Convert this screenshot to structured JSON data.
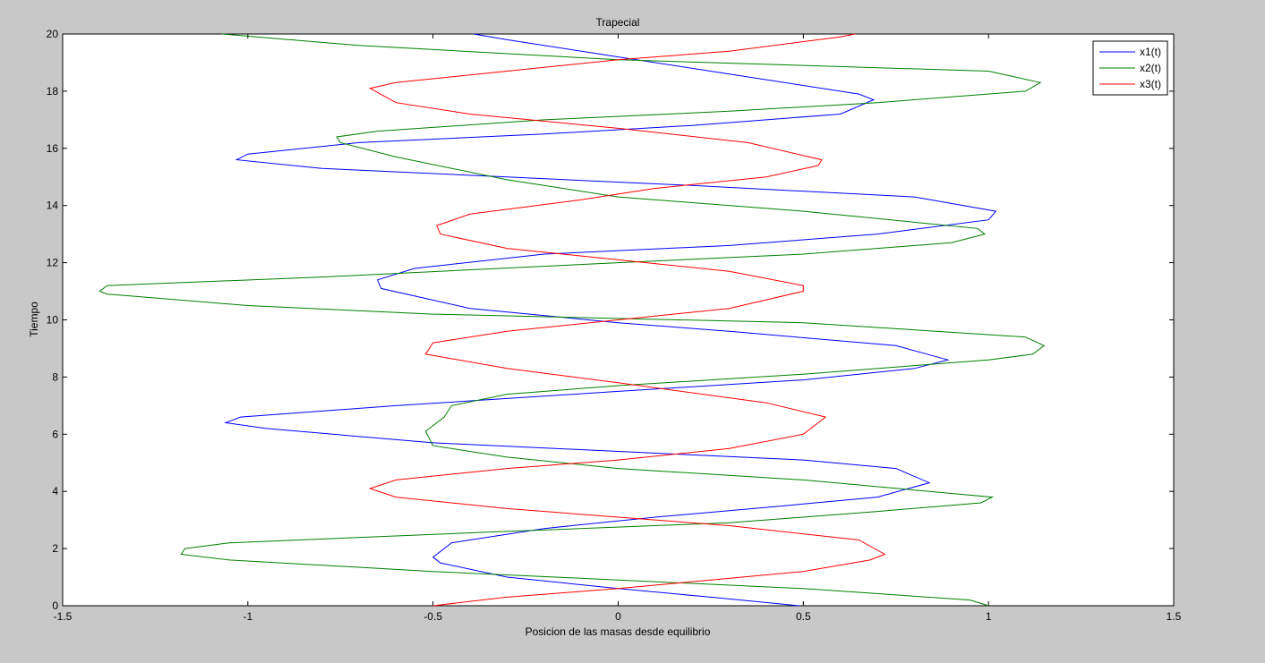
{
  "chart_data": {
    "type": "line",
    "title": "Trapecial",
    "xlabel": "Posicion de las masas desde equilibrio",
    "ylabel": "Tiempo",
    "xlim": [
      -1.5,
      1.5
    ],
    "ylim": [
      0,
      20
    ],
    "xticks": [
      -1.5,
      -1,
      -0.5,
      0,
      0.5,
      1,
      1.5
    ],
    "yticks": [
      0,
      2,
      4,
      6,
      8,
      10,
      12,
      14,
      16,
      18,
      20
    ],
    "xtick_labels": [
      "-1.5",
      "-1",
      "-0.5",
      "0",
      "0.5",
      "1",
      "1.5"
    ],
    "ytick_labels": [
      "0",
      "2",
      "4",
      "6",
      "8",
      "10",
      "12",
      "14",
      "16",
      "18",
      "20"
    ],
    "grid": false,
    "legend_position": "top-right",
    "series": [
      {
        "name": "x1(t)",
        "color": "#0000ff",
        "points": [
          [
            0.49,
            0
          ],
          [
            0.25,
            0.3
          ],
          [
            0.0,
            0.6
          ],
          [
            -0.3,
            1.0
          ],
          [
            -0.48,
            1.5
          ],
          [
            -0.5,
            1.7
          ],
          [
            -0.45,
            2.2
          ],
          [
            -0.2,
            2.7
          ],
          [
            0.1,
            3.1
          ],
          [
            0.45,
            3.5
          ],
          [
            0.7,
            3.8
          ],
          [
            0.84,
            4.3
          ],
          [
            0.75,
            4.8
          ],
          [
            0.5,
            5.1
          ],
          [
            0.0,
            5.4
          ],
          [
            -0.5,
            5.7
          ],
          [
            -0.95,
            6.2
          ],
          [
            -1.06,
            6.4
          ],
          [
            -1.02,
            6.6
          ],
          [
            -0.6,
            7.0
          ],
          [
            0.0,
            7.5
          ],
          [
            0.5,
            7.9
          ],
          [
            0.8,
            8.3
          ],
          [
            0.89,
            8.6
          ],
          [
            0.75,
            9.1
          ],
          [
            0.3,
            9.6
          ],
          [
            0.0,
            9.9
          ],
          [
            -0.4,
            10.4
          ],
          [
            -0.64,
            11.1
          ],
          [
            -0.65,
            11.4
          ],
          [
            -0.55,
            11.8
          ],
          [
            -0.2,
            12.3
          ],
          [
            0.3,
            12.6
          ],
          [
            0.7,
            13.0
          ],
          [
            1.0,
            13.5
          ],
          [
            1.02,
            13.8
          ],
          [
            0.8,
            14.3
          ],
          [
            0.2,
            14.7
          ],
          [
            -0.3,
            15.0
          ],
          [
            -0.8,
            15.3
          ],
          [
            -1.03,
            15.6
          ],
          [
            -1.0,
            15.8
          ],
          [
            -0.7,
            16.2
          ],
          [
            -0.2,
            16.5
          ],
          [
            0.2,
            16.8
          ],
          [
            0.6,
            17.2
          ],
          [
            0.69,
            17.7
          ],
          [
            0.65,
            17.9
          ],
          [
            0.3,
            18.6
          ],
          [
            0.0,
            19.2
          ],
          [
            -0.3,
            19.8
          ],
          [
            -0.39,
            20.0
          ]
        ]
      },
      {
        "name": "x2(t)",
        "color": "#007f00",
        "points": [
          [
            1.0,
            0
          ],
          [
            0.95,
            0.2
          ],
          [
            0.5,
            0.6
          ],
          [
            0.0,
            0.9
          ],
          [
            -0.5,
            1.2
          ],
          [
            -1.05,
            1.6
          ],
          [
            -1.18,
            1.8
          ],
          [
            -1.17,
            2.0
          ],
          [
            -1.05,
            2.2
          ],
          [
            -0.3,
            2.6
          ],
          [
            0.3,
            2.9
          ],
          [
            0.7,
            3.3
          ],
          [
            0.98,
            3.6
          ],
          [
            1.01,
            3.8
          ],
          [
            0.5,
            4.4
          ],
          [
            0.0,
            4.8
          ],
          [
            -0.3,
            5.2
          ],
          [
            -0.5,
            5.6
          ],
          [
            -0.52,
            6.1
          ],
          [
            -0.47,
            6.6
          ],
          [
            -0.45,
            7.0
          ],
          [
            -0.3,
            7.4
          ],
          [
            0.0,
            7.7
          ],
          [
            0.5,
            8.1
          ],
          [
            1.0,
            8.6
          ],
          [
            1.12,
            8.8
          ],
          [
            1.15,
            9.1
          ],
          [
            1.1,
            9.4
          ],
          [
            0.5,
            9.9
          ],
          [
            -0.5,
            10.2
          ],
          [
            -1.0,
            10.5
          ],
          [
            -1.38,
            10.9
          ],
          [
            -1.4,
            11.0
          ],
          [
            -1.38,
            11.2
          ],
          [
            -0.8,
            11.5
          ],
          [
            0.0,
            12.0
          ],
          [
            0.5,
            12.3
          ],
          [
            0.9,
            12.7
          ],
          [
            0.99,
            13.0
          ],
          [
            0.97,
            13.2
          ],
          [
            0.5,
            13.8
          ],
          [
            0.0,
            14.3
          ],
          [
            -0.3,
            14.9
          ],
          [
            -0.6,
            15.7
          ],
          [
            -0.75,
            16.2
          ],
          [
            -0.76,
            16.4
          ],
          [
            -0.65,
            16.6
          ],
          [
            -0.2,
            17.0
          ],
          [
            0.3,
            17.3
          ],
          [
            0.7,
            17.6
          ],
          [
            1.1,
            18.0
          ],
          [
            1.14,
            18.3
          ],
          [
            1.0,
            18.7
          ],
          [
            0.0,
            19.1
          ],
          [
            -0.7,
            19.6
          ],
          [
            -1.07,
            20.0
          ]
        ]
      },
      {
        "name": "x3(t)",
        "color": "#ff0000",
        "points": [
          [
            -0.5,
            0
          ],
          [
            -0.3,
            0.3
          ],
          [
            0.0,
            0.6
          ],
          [
            0.25,
            0.9
          ],
          [
            0.5,
            1.2
          ],
          [
            0.68,
            1.6
          ],
          [
            0.72,
            1.8
          ],
          [
            0.65,
            2.3
          ],
          [
            0.3,
            2.8
          ],
          [
            0.0,
            3.1
          ],
          [
            -0.3,
            3.4
          ],
          [
            -0.6,
            3.8
          ],
          [
            -0.67,
            4.1
          ],
          [
            -0.6,
            4.4
          ],
          [
            -0.3,
            4.8
          ],
          [
            0.0,
            5.1
          ],
          [
            0.3,
            5.5
          ],
          [
            0.5,
            6.0
          ],
          [
            0.56,
            6.6
          ],
          [
            0.4,
            7.1
          ],
          [
            0.0,
            7.8
          ],
          [
            -0.3,
            8.3
          ],
          [
            -0.52,
            8.8
          ],
          [
            -0.5,
            9.2
          ],
          [
            -0.3,
            9.6
          ],
          [
            0.0,
            10.0
          ],
          [
            0.3,
            10.4
          ],
          [
            0.5,
            11.0
          ],
          [
            0.5,
            11.2
          ],
          [
            0.3,
            11.7
          ],
          [
            0.0,
            12.1
          ],
          [
            -0.3,
            12.5
          ],
          [
            -0.48,
            13.0
          ],
          [
            -0.49,
            13.3
          ],
          [
            -0.4,
            13.7
          ],
          [
            -0.1,
            14.2
          ],
          [
            0.1,
            14.6
          ],
          [
            0.4,
            15.0
          ],
          [
            0.54,
            15.4
          ],
          [
            0.55,
            15.6
          ],
          [
            0.35,
            16.2
          ],
          [
            0.0,
            16.7
          ],
          [
            -0.4,
            17.2
          ],
          [
            -0.6,
            17.6
          ],
          [
            -0.67,
            18.1
          ],
          [
            -0.6,
            18.3
          ],
          [
            -0.3,
            18.7
          ],
          [
            0.0,
            19.1
          ],
          [
            0.3,
            19.4
          ],
          [
            0.6,
            19.9
          ],
          [
            0.64,
            20.0
          ]
        ]
      }
    ]
  }
}
